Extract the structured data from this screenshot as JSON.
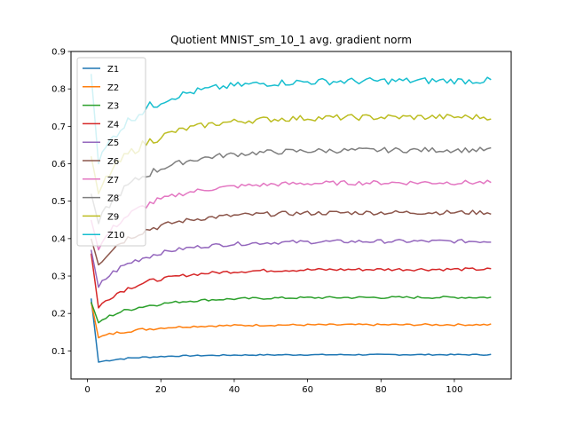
{
  "chart_data": {
    "type": "line",
    "title": "Quotient MNIST_sm_10_1 avg. gradient norm",
    "xlabel": "",
    "ylabel": "",
    "xlim": [
      -4.5,
      115.5
    ],
    "ylim": [
      0.025,
      0.9
    ],
    "xticks": [
      0,
      20,
      40,
      60,
      80,
      100
    ],
    "yticks": [
      0.1,
      0.2,
      0.3,
      0.4,
      0.5,
      0.6,
      0.7,
      0.8,
      0.9
    ],
    "grid": false,
    "legend_position": "upper-left",
    "x": {
      "start": 1,
      "end": 110
    },
    "series": [
      {
        "name": "Z1",
        "color": "#1f77b4",
        "start": 0.24,
        "dip": 0.07,
        "plateau": 0.09,
        "noise": 0.0015
      },
      {
        "name": "Z2",
        "color": "#ff7f0e",
        "start": 0.23,
        "dip": 0.135,
        "plateau": 0.17,
        "noise": 0.0025
      },
      {
        "name": "Z3",
        "color": "#2ca02c",
        "start": 0.23,
        "dip": 0.175,
        "plateau": 0.243,
        "noise": 0.003
      },
      {
        "name": "Z4",
        "color": "#d62728",
        "start": 0.36,
        "dip": 0.215,
        "plateau": 0.318,
        "noise": 0.004
      },
      {
        "name": "Z5",
        "color": "#9467bd",
        "start": 0.37,
        "dip": 0.27,
        "plateau": 0.393,
        "noise": 0.005
      },
      {
        "name": "Z6",
        "color": "#8c564b",
        "start": 0.4,
        "dip": 0.33,
        "plateau": 0.47,
        "noise": 0.006
      },
      {
        "name": "Z7",
        "color": "#e377c2",
        "start": 0.45,
        "dip": 0.37,
        "plateau": 0.55,
        "noise": 0.006
      },
      {
        "name": "Z8",
        "color": "#7f7f7f",
        "start": 0.52,
        "dip": 0.44,
        "plateau": 0.637,
        "noise": 0.007
      },
      {
        "name": "Z9",
        "color": "#bcbd22",
        "start": 0.62,
        "dip": 0.52,
        "plateau": 0.725,
        "noise": 0.008
      },
      {
        "name": "Z10",
        "color": "#17becf",
        "start": 0.84,
        "dip": 0.6,
        "plateau": 0.822,
        "noise": 0.009
      }
    ]
  }
}
